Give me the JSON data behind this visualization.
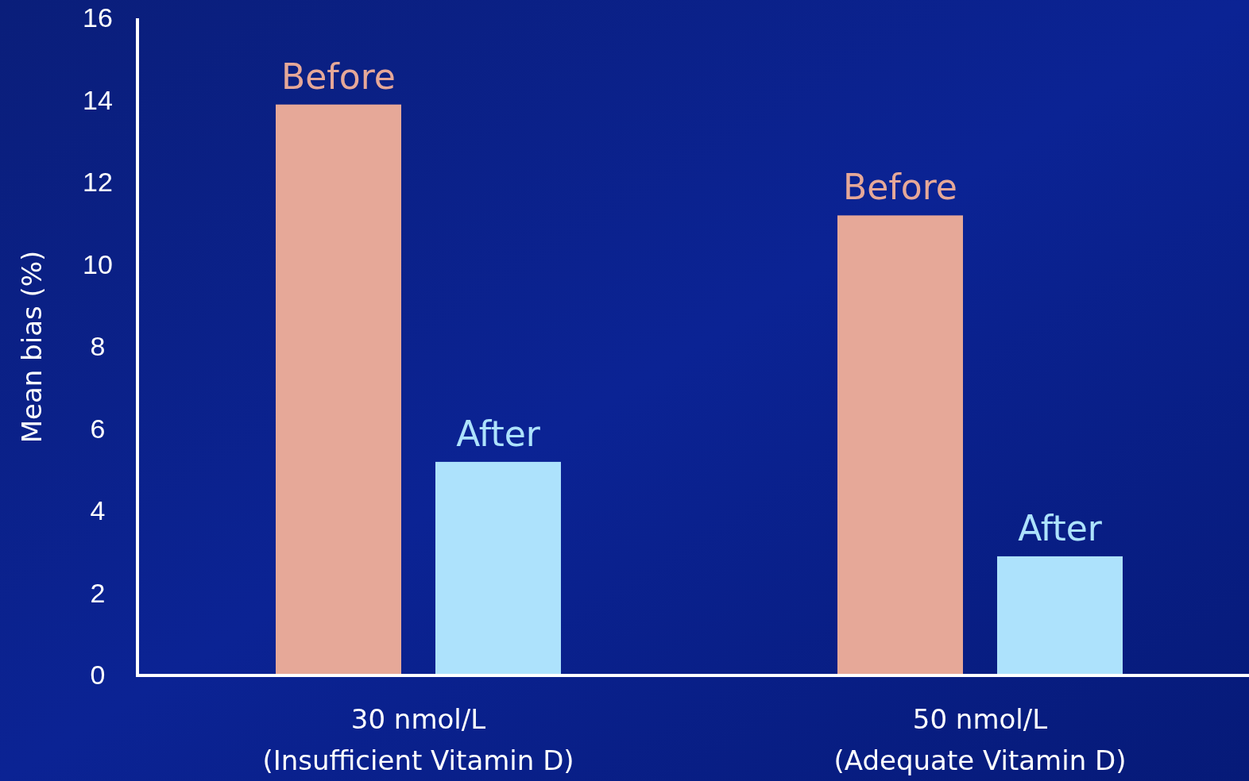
{
  "chart_data": {
    "type": "bar",
    "ylabel": "Mean bias (%)",
    "categories": [
      "30 nmol/L\n(Insufficient Vitamin D)",
      "50 nmol/L\n(Adequate Vitamin D)"
    ],
    "series": [
      {
        "name": "Before",
        "color": "#e6a898",
        "values": [
          13.9,
          11.2
        ]
      },
      {
        "name": "After",
        "color": "#ade2fc",
        "values": [
          5.2,
          2.9
        ]
      }
    ],
    "ylim": [
      0,
      16
    ],
    "yticks": [
      0,
      2,
      4,
      6,
      8,
      10,
      12,
      14,
      16
    ],
    "grid": false,
    "legend": false
  }
}
